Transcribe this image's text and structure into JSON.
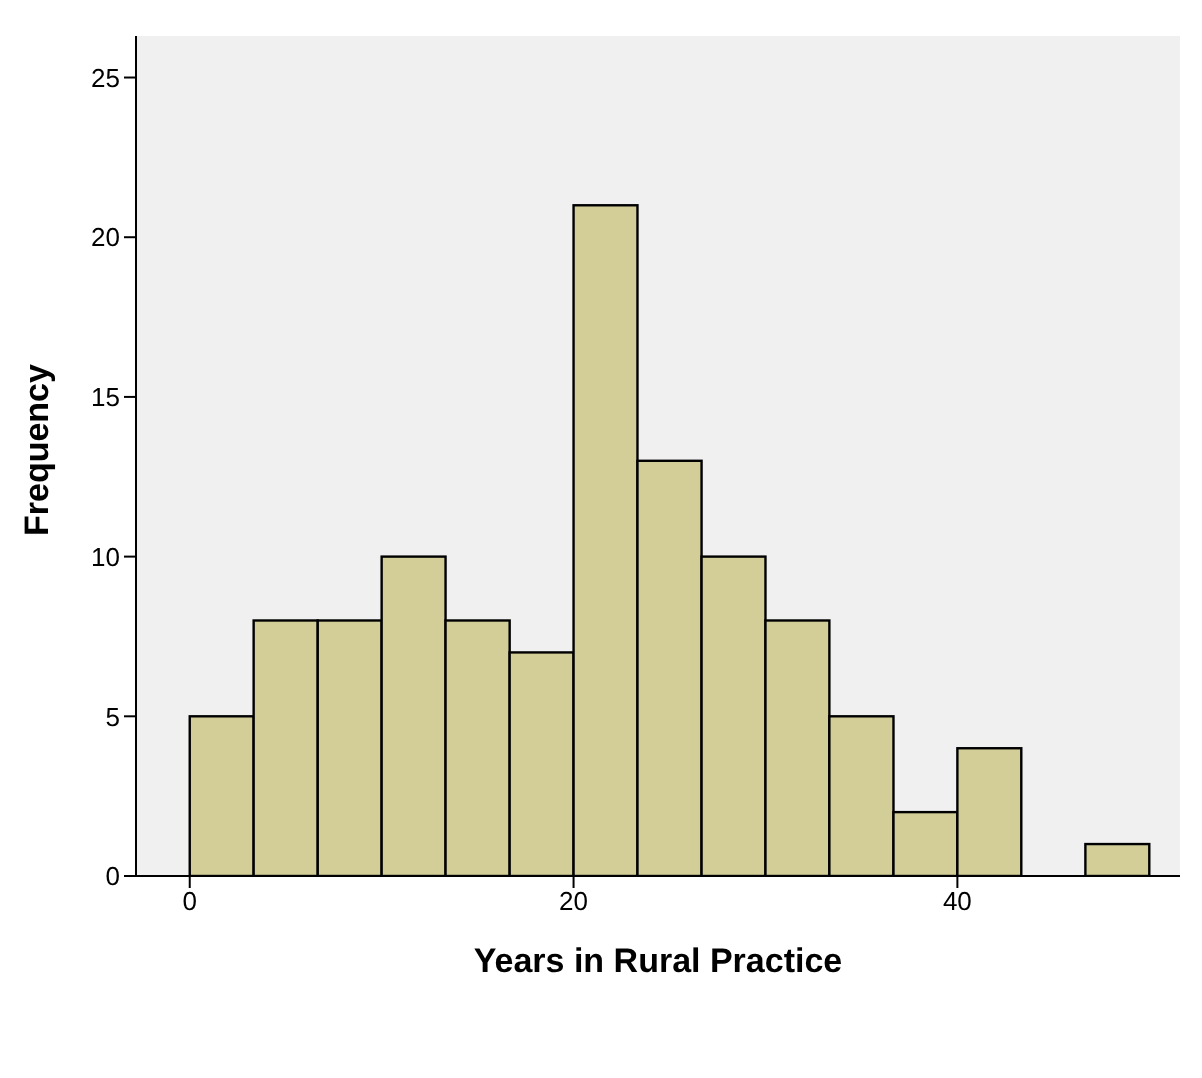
{
  "chart_data": {
    "type": "histogram",
    "xlabel": "Years in Rural Practice",
    "ylabel": "Frequency",
    "bins": [
      0,
      3.33,
      6.67,
      10,
      13.33,
      16.67,
      20,
      23.33,
      26.67,
      30,
      33.33,
      36.67,
      40,
      43.33,
      46.67,
      50
    ],
    "values": [
      5,
      8,
      8,
      10,
      8,
      7,
      21,
      13,
      10,
      8,
      5,
      2,
      4,
      0,
      1
    ],
    "color": "#d3ce98",
    "xlim": [
      -2.8,
      51.6
    ],
    "xticks": [
      0,
      20,
      40
    ],
    "ylim": [
      0,
      26.3
    ],
    "yticks": [
      0,
      5,
      10,
      15,
      20,
      25
    ],
    "grid": false,
    "legend": false
  }
}
